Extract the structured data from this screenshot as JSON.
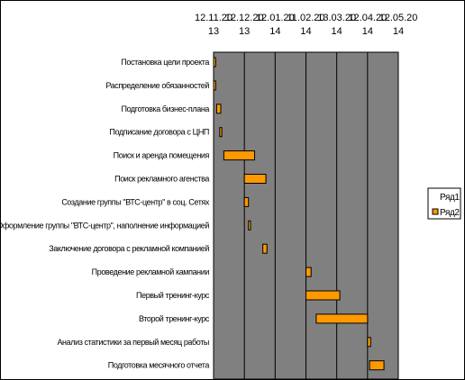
{
  "chart_data": {
    "type": "bar",
    "orientation": "horizontal",
    "stacked": true,
    "x_tick_labels": [
      [
        "12.11.20",
        "13"
      ],
      [
        "12.12.20",
        "13"
      ],
      [
        "12.01.20",
        "14"
      ],
      [
        "11.02.20",
        "14"
      ],
      [
        "13.03.20",
        "14"
      ],
      [
        "12.04.20",
        "14"
      ],
      [
        "12.05.20",
        "14"
      ]
    ],
    "x_ticks": [
      "2013-11-12",
      "2013-12-12",
      "2014-01-11",
      "2014-02-10",
      "2014-03-12",
      "2014-04-11",
      "2014-05-11"
    ],
    "xlim": [
      "2013-11-12",
      "2014-05-11"
    ],
    "categories": [
      "Постановка цели проекта",
      "Распределение обязанностей",
      "Подготовка бизнес-плана",
      "Подписание договора с ЦНП",
      "Поиск и аренда помещения",
      "Поиск рекламного агенства",
      "Создание группы \"ВТС-центр\" в соц. Сетях",
      "Оформление группы \"ВТС-центр\", наполнение информацией",
      "Заключение договора с рекламной компанией",
      "Проведение рекламной кампании",
      "Первый тренинг-курс",
      "Второй тренинг-курс",
      "Анализ статистики за первый месяц работы",
      "Подготовка месячного отчета"
    ],
    "series": [
      {
        "name": "Ряд1",
        "role": "start",
        "values": [
          "2013-11-12",
          "2013-11-12",
          "2013-11-15",
          "2013-11-18",
          "2013-11-22",
          "2013-12-12",
          "2013-12-12",
          "2013-12-16",
          "2013-12-30",
          "2014-02-10",
          "2014-02-10",
          "2014-02-20",
          "2014-04-11",
          "2014-04-13"
        ]
      },
      {
        "name": "Ряд2",
        "role": "duration_days",
        "values": [
          2,
          2,
          4,
          2,
          30,
          21,
          4,
          2,
          4,
          5,
          33,
          50,
          3,
          14
        ]
      }
    ],
    "legend": {
      "entries": [
        "Ряд1",
        "Ряд2"
      ],
      "position": "right"
    },
    "grid": true,
    "colors": {
      "plot_background": "#808080",
      "bar_fill": "#ff9900",
      "bar_stroke": "#000000",
      "gridline": "#000000"
    }
  }
}
